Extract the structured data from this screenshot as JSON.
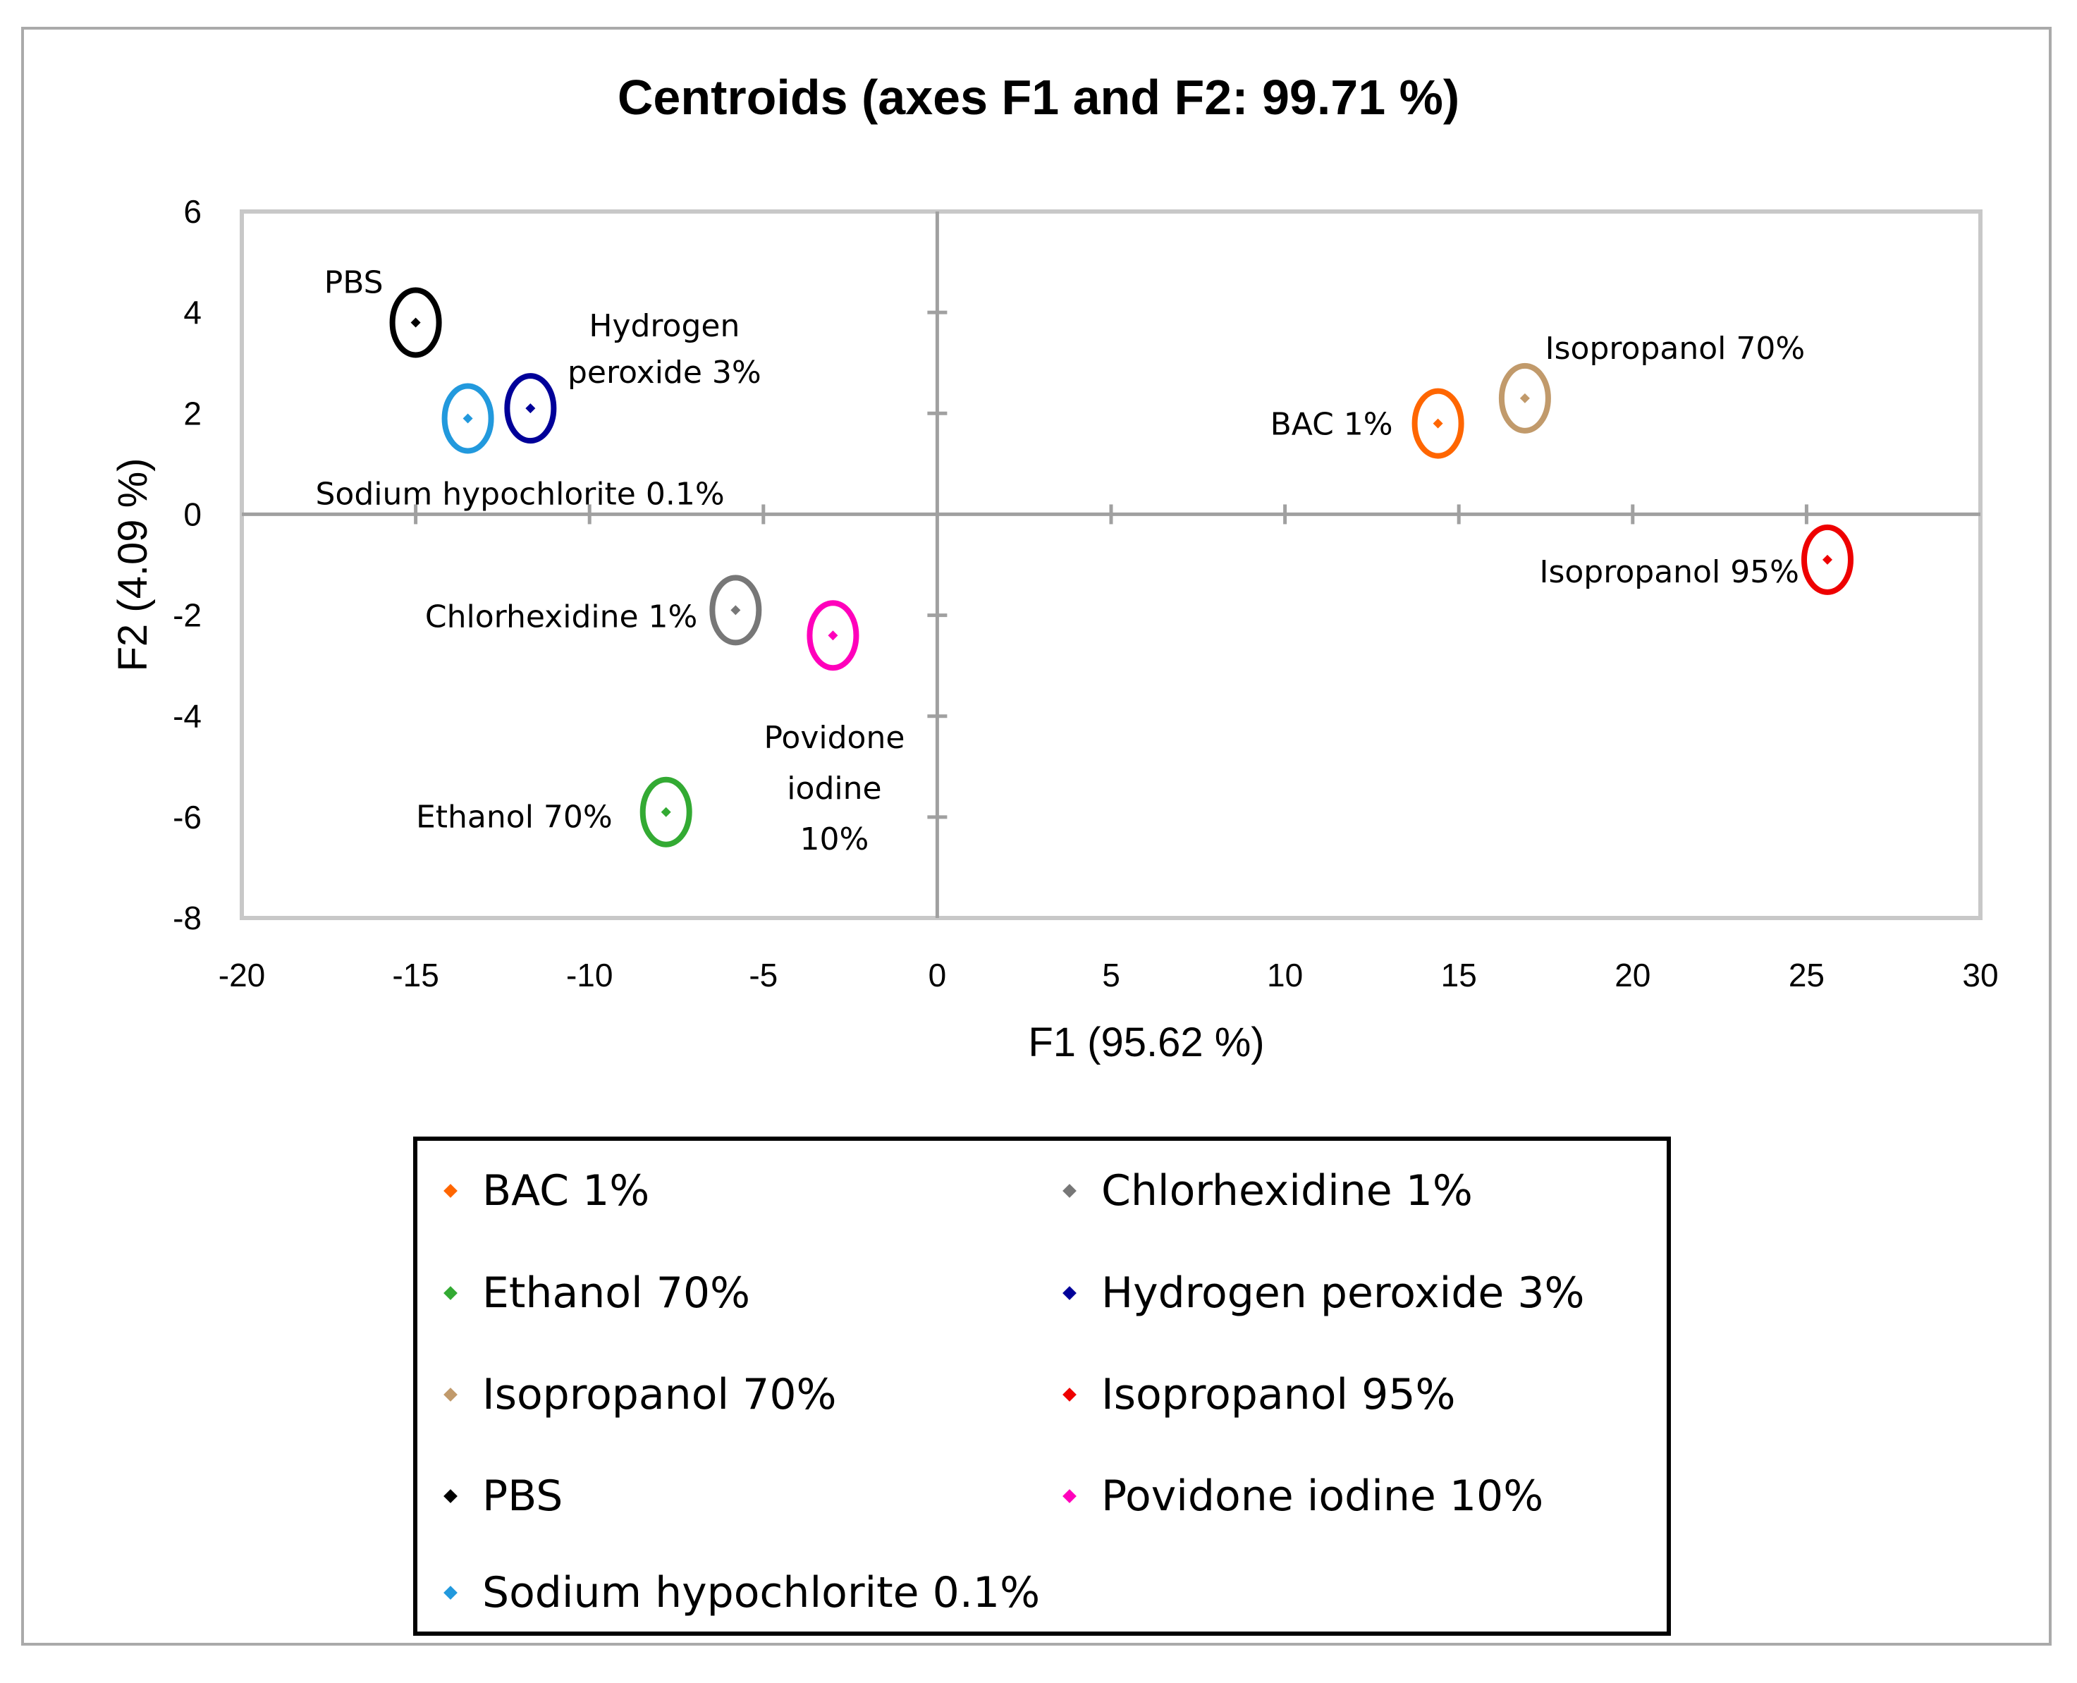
{
  "chart_data": {
    "type": "scatter",
    "title": "Centroids (axes F1 and F2: 99.71 %)",
    "xlabel": "F1 (95.62 %)",
    "ylabel": "F2 (4.09 %)",
    "xlim": [
      -20,
      30
    ],
    "ylim": [
      -8,
      6
    ],
    "xticks": [
      -20,
      -15,
      -10,
      -5,
      0,
      5,
      10,
      15,
      20,
      25,
      30
    ],
    "yticks": [
      -8,
      -6,
      -4,
      -2,
      0,
      2,
      4,
      6
    ],
    "legend_position": "bottom",
    "series": [
      {
        "name": "BAC 1%",
        "color": "#ff6600",
        "x": 14.4,
        "y": 1.8,
        "label": [
          "BAC 1%"
        ]
      },
      {
        "name": "Chlorhexidine 1%",
        "color": "#777777",
        "x": -5.8,
        "y": -1.9,
        "label": [
          "Chlorhexidine 1%"
        ]
      },
      {
        "name": "Ethanol 70%",
        "color": "#33aa33",
        "x": -7.8,
        "y": -5.9,
        "label": [
          "Ethanol 70%"
        ]
      },
      {
        "name": "Hydrogen peroxide 3%",
        "color": "#000099",
        "x": -11.7,
        "y": 2.1,
        "label": [
          "Hydrogen",
          "peroxide 3%"
        ]
      },
      {
        "name": "Isopropanol 70%",
        "color": "#c19a6b",
        "x": 16.9,
        "y": 2.3,
        "label": [
          "Isopropanol 70%"
        ]
      },
      {
        "name": "Isopropanol 95%",
        "color": "#ee0000",
        "x": 25.6,
        "y": -0.9,
        "label": [
          "Isopropanol 95%"
        ]
      },
      {
        "name": "PBS",
        "color": "#000000",
        "x": -15.0,
        "y": 3.8,
        "label": [
          "PBS"
        ]
      },
      {
        "name": "Povidone iodine 10%",
        "color": "#ff00bb",
        "x": -3.0,
        "y": -2.4,
        "label": [
          "Povidone",
          "iodine",
          "10%"
        ]
      },
      {
        "name": "Sodium hypochlorite 0.1%",
        "color": "#2299dd",
        "x": -13.5,
        "y": 1.9,
        "label": [
          "Sodium hypochlorite 0.1%"
        ]
      }
    ]
  }
}
